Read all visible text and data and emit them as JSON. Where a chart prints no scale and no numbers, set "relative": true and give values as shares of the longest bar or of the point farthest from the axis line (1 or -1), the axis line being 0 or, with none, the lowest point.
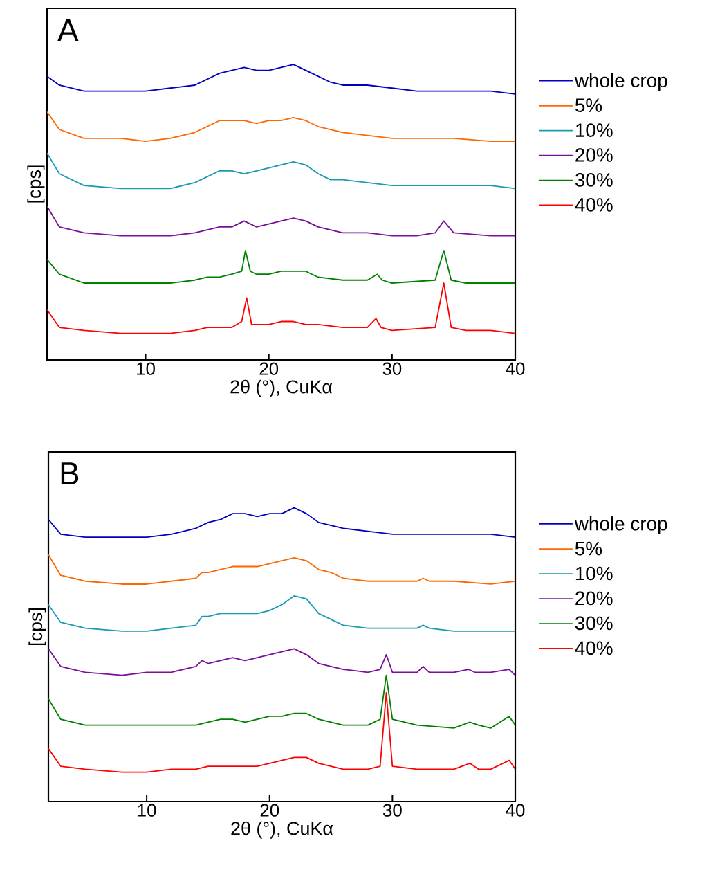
{
  "chart_data": [
    {
      "type": "line",
      "annotations": [
        "A"
      ],
      "xlabel": "2θ (°), CuKα",
      "ylabel": "[cps]",
      "relative": true,
      "xlim": [
        2,
        40
      ],
      "xticks": [
        10,
        20,
        30,
        40
      ],
      "legend": "right",
      "grid": false,
      "series": [
        {
          "name": "whole crop",
          "color": "#0000c0",
          "x": [
            2,
            3,
            5,
            8,
            10,
            12,
            14,
            15,
            16,
            17,
            18,
            19,
            20,
            21,
            22,
            23,
            24,
            25,
            26,
            28,
            30,
            32,
            35,
            38,
            40
          ],
          "values": [
            0.96,
            0.93,
            0.91,
            0.91,
            0.91,
            0.92,
            0.93,
            0.95,
            0.97,
            0.98,
            0.99,
            0.98,
            0.98,
            0.99,
            1.0,
            0.98,
            0.96,
            0.94,
            0.93,
            0.93,
            0.92,
            0.91,
            0.91,
            0.91,
            0.9
          ]
        },
        {
          "name": "5%",
          "color": "#ff6600",
          "x": [
            2,
            3,
            5,
            8,
            10,
            12,
            14,
            15,
            16,
            17,
            18,
            19,
            20,
            21,
            22,
            23,
            24,
            25,
            26,
            28,
            30,
            32,
            35,
            38,
            40
          ],
          "values": [
            0.84,
            0.78,
            0.75,
            0.75,
            0.74,
            0.75,
            0.77,
            0.79,
            0.81,
            0.81,
            0.81,
            0.8,
            0.81,
            0.81,
            0.82,
            0.81,
            0.79,
            0.78,
            0.77,
            0.76,
            0.75,
            0.75,
            0.75,
            0.74,
            0.74
          ]
        },
        {
          "name": "10%",
          "color": "#1a99b3",
          "x": [
            2,
            3,
            5,
            8,
            10,
            12,
            14,
            15,
            16,
            17,
            18,
            19,
            20,
            21,
            22,
            23,
            24,
            25,
            26,
            28,
            30,
            32,
            35,
            38,
            40
          ],
          "values": [
            0.7,
            0.63,
            0.59,
            0.58,
            0.58,
            0.58,
            0.6,
            0.62,
            0.64,
            0.64,
            0.63,
            0.64,
            0.65,
            0.66,
            0.67,
            0.66,
            0.63,
            0.61,
            0.61,
            0.6,
            0.59,
            0.59,
            0.59,
            0.59,
            0.58
          ]
        },
        {
          "name": "20%",
          "color": "#7a0f9a",
          "x": [
            2,
            3,
            5,
            8,
            10,
            12,
            14,
            15,
            16,
            17,
            18,
            18.5,
            19,
            20,
            21,
            22,
            23,
            24,
            25,
            26,
            28,
            30,
            32,
            33.5,
            34.2,
            35,
            38,
            40
          ],
          "values": [
            0.52,
            0.45,
            0.43,
            0.42,
            0.42,
            0.42,
            0.43,
            0.44,
            0.45,
            0.45,
            0.47,
            0.46,
            0.45,
            0.46,
            0.47,
            0.48,
            0.47,
            0.45,
            0.44,
            0.43,
            0.43,
            0.42,
            0.42,
            0.43,
            0.47,
            0.43,
            0.42,
            0.42
          ]
        },
        {
          "name": "30%",
          "color": "#008000",
          "x": [
            2,
            3,
            5,
            8,
            10,
            12,
            14,
            15,
            16,
            17,
            17.8,
            18.1,
            18.5,
            19,
            20,
            21,
            22,
            23,
            24,
            26,
            28,
            28.8,
            29.2,
            30,
            33.5,
            34.2,
            34.8,
            36,
            38,
            40
          ],
          "values": [
            0.34,
            0.29,
            0.26,
            0.26,
            0.26,
            0.26,
            0.27,
            0.28,
            0.28,
            0.29,
            0.3,
            0.37,
            0.3,
            0.29,
            0.29,
            0.3,
            0.3,
            0.3,
            0.28,
            0.27,
            0.27,
            0.29,
            0.27,
            0.26,
            0.27,
            0.37,
            0.27,
            0.26,
            0.26,
            0.26
          ]
        },
        {
          "name": "40%",
          "color": "#ff0000",
          "x": [
            2,
            3,
            5,
            8,
            10,
            12,
            14,
            15,
            16,
            17,
            17.8,
            18.2,
            18.6,
            19,
            20,
            21,
            22,
            23,
            24,
            26,
            28,
            28.7,
            29.1,
            30,
            33.5,
            34.2,
            34.8,
            36,
            38,
            40
          ],
          "values": [
            0.17,
            0.11,
            0.1,
            0.09,
            0.09,
            0.09,
            0.1,
            0.11,
            0.11,
            0.11,
            0.13,
            0.21,
            0.12,
            0.12,
            0.12,
            0.13,
            0.13,
            0.12,
            0.12,
            0.11,
            0.11,
            0.14,
            0.11,
            0.1,
            0.11,
            0.26,
            0.11,
            0.1,
            0.1,
            0.09
          ]
        }
      ]
    },
    {
      "type": "line",
      "annotations": [
        "B"
      ],
      "xlabel": "2θ (°), CuKα",
      "ylabel": "[cps]",
      "relative": true,
      "xlim": [
        2,
        40
      ],
      "xticks": [
        10,
        20,
        30,
        40
      ],
      "legend": "right",
      "grid": false,
      "series": [
        {
          "name": "whole crop",
          "color": "#0000c0",
          "x": [
            2,
            3,
            5,
            8,
            10,
            12,
            14,
            15,
            16,
            17,
            18,
            19,
            20,
            21,
            22,
            23,
            24,
            25,
            26,
            28,
            30,
            32,
            35,
            38,
            40
          ],
          "values": [
            0.96,
            0.91,
            0.9,
            0.9,
            0.9,
            0.91,
            0.93,
            0.95,
            0.96,
            0.98,
            0.98,
            0.97,
            0.98,
            0.98,
            1.0,
            0.98,
            0.95,
            0.94,
            0.93,
            0.92,
            0.91,
            0.91,
            0.91,
            0.91,
            0.9
          ]
        },
        {
          "name": "5%",
          "color": "#ff6600",
          "x": [
            2,
            3,
            5,
            8,
            10,
            12,
            14,
            14.5,
            15,
            16,
            17,
            18,
            19,
            20,
            21,
            22,
            23,
            24,
            25,
            26,
            28,
            30,
            32,
            32.5,
            33,
            35,
            38,
            40
          ],
          "values": [
            0.84,
            0.77,
            0.75,
            0.74,
            0.74,
            0.75,
            0.76,
            0.78,
            0.78,
            0.79,
            0.8,
            0.8,
            0.8,
            0.81,
            0.82,
            0.83,
            0.82,
            0.79,
            0.78,
            0.76,
            0.75,
            0.75,
            0.75,
            0.76,
            0.75,
            0.75,
            0.74,
            0.75
          ]
        },
        {
          "name": "10%",
          "color": "#1a99b3",
          "x": [
            2,
            3,
            5,
            8,
            10,
            12,
            14,
            14.5,
            15,
            16,
            17,
            18,
            19,
            20,
            21,
            22,
            23,
            24,
            25,
            26,
            28,
            30,
            32,
            32.5,
            33,
            35,
            38,
            40
          ],
          "values": [
            0.67,
            0.61,
            0.59,
            0.58,
            0.58,
            0.59,
            0.6,
            0.63,
            0.63,
            0.64,
            0.64,
            0.64,
            0.64,
            0.65,
            0.67,
            0.7,
            0.69,
            0.64,
            0.62,
            0.6,
            0.59,
            0.59,
            0.59,
            0.6,
            0.59,
            0.58,
            0.58,
            0.58
          ]
        },
        {
          "name": "20%",
          "color": "#7a0f9a",
          "x": [
            2,
            3,
            5,
            8,
            10,
            12,
            14,
            14.5,
            15,
            16,
            17,
            18,
            19,
            20,
            21,
            22,
            23,
            24,
            25,
            26,
            28,
            29,
            29.5,
            30,
            32,
            32.5,
            33,
            35,
            36.2,
            36.7,
            38,
            39.5,
            40
          ],
          "values": [
            0.52,
            0.46,
            0.44,
            0.43,
            0.44,
            0.44,
            0.46,
            0.48,
            0.47,
            0.48,
            0.49,
            0.48,
            0.49,
            0.5,
            0.51,
            0.52,
            0.5,
            0.47,
            0.46,
            0.45,
            0.44,
            0.45,
            0.5,
            0.44,
            0.44,
            0.46,
            0.44,
            0.44,
            0.45,
            0.44,
            0.44,
            0.45,
            0.43
          ]
        },
        {
          "name": "30%",
          "color": "#008000",
          "x": [
            2,
            3,
            5,
            8,
            10,
            12,
            14,
            15,
            16,
            17,
            18,
            19,
            20,
            21,
            22,
            23,
            24,
            26,
            28,
            29,
            29.5,
            30,
            32,
            35,
            36.3,
            37,
            38,
            39.5,
            40
          ],
          "values": [
            0.35,
            0.28,
            0.26,
            0.26,
            0.26,
            0.26,
            0.26,
            0.27,
            0.28,
            0.28,
            0.27,
            0.28,
            0.29,
            0.29,
            0.3,
            0.3,
            0.28,
            0.26,
            0.26,
            0.28,
            0.43,
            0.28,
            0.26,
            0.25,
            0.27,
            0.26,
            0.25,
            0.29,
            0.26
          ]
        },
        {
          "name": "40%",
          "color": "#ff0000",
          "x": [
            2,
            3,
            5,
            8,
            10,
            12,
            14,
            15,
            16,
            17,
            18,
            19,
            20,
            21,
            22,
            23,
            24,
            26,
            28,
            29,
            29.5,
            30,
            32,
            35,
            36.3,
            37,
            38,
            39.5,
            40
          ],
          "values": [
            0.18,
            0.12,
            0.11,
            0.1,
            0.1,
            0.11,
            0.11,
            0.12,
            0.12,
            0.12,
            0.12,
            0.12,
            0.13,
            0.14,
            0.15,
            0.15,
            0.13,
            0.11,
            0.11,
            0.12,
            0.37,
            0.12,
            0.11,
            0.11,
            0.13,
            0.11,
            0.11,
            0.14,
            0.11
          ]
        }
      ]
    }
  ]
}
